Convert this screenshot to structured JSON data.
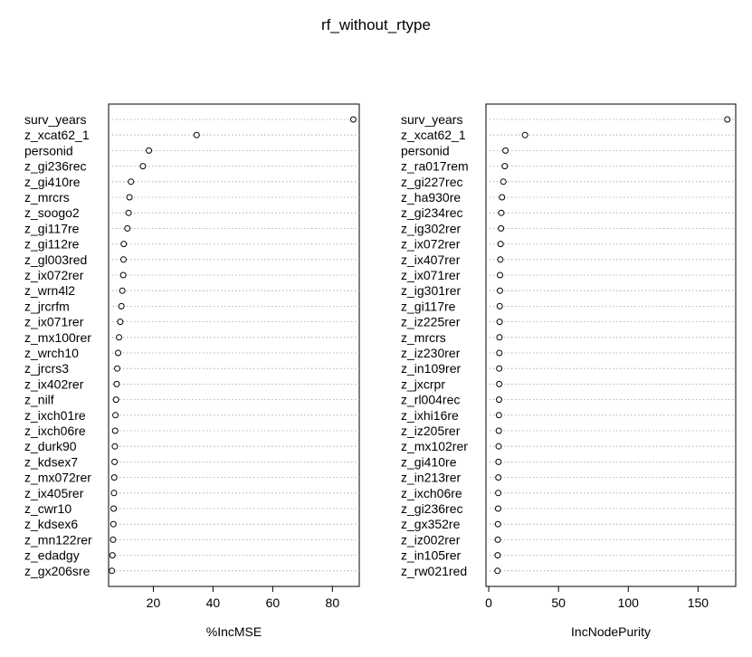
{
  "title": "rf_without_rtype",
  "chart_data": [
    {
      "type": "scatter",
      "xlabel": "%IncMSE",
      "ylabel": "",
      "xlim": [
        5,
        89
      ],
      "xticks": [
        20,
        40,
        60,
        80
      ],
      "grid": "dotted horizontal",
      "categories": [
        "surv_years",
        "z_xcat62_1",
        "personid",
        "z_gi236rec",
        "z_gi410re",
        "z_mrcrs",
        "z_soogo2",
        "z_gi117re",
        "z_gi112re",
        "z_gl003red",
        "z_ix072rer",
        "z_wrn4l2",
        "z_jrcrfm",
        "z_ix071rer",
        "z_mx100rer",
        "z_wrch10",
        "z_jrcrs3",
        "z_ix402rer",
        "z_nilf",
        "z_ixch01re",
        "z_ixch06re",
        "z_durk90",
        "z_kdsex7",
        "z_mx072rer",
        "z_ix405rer",
        "z_cwr10",
        "z_kdsex6",
        "z_mn122rer",
        "z_edadgy",
        "z_gx206sre"
      ],
      "values": [
        87,
        34.5,
        18.5,
        16.5,
        12.5,
        12,
        11.7,
        11.3,
        10.1,
        10,
        9.9,
        9.6,
        9.3,
        8.9,
        8.5,
        8.2,
        7.9,
        7.7,
        7.5,
        7.3,
        7.2,
        7.1,
        7.0,
        6.9,
        6.8,
        6.7,
        6.6,
        6.5,
        6.3,
        6.1
      ]
    },
    {
      "type": "scatter",
      "xlabel": "IncNodePurity",
      "ylabel": "",
      "xlim": [
        -2,
        177
      ],
      "xticks": [
        0,
        50,
        100,
        150
      ],
      "grid": "dotted horizontal",
      "categories": [
        "surv_years",
        "z_xcat62_1",
        "personid",
        "z_ra017rem",
        "z_gi227rec",
        "z_ha930re",
        "z_gi234rec",
        "z_ig302rer",
        "z_ix072rer",
        "z_ix407rer",
        "z_ix071rer",
        "z_ig301rer",
        "z_gi117re",
        "z_iz225rer",
        "z_mrcrs",
        "z_iz230rer",
        "z_in109rer",
        "z_jxcrpr",
        "z_rl004rec",
        "z_ixhi16re",
        "z_iz205rer",
        "z_mx102rer",
        "z_gi410re",
        "z_in213rer",
        "z_ixch06re",
        "z_gi236rec",
        "z_gx352re",
        "z_iz002rer",
        "z_in105rer",
        "z_rw021red"
      ],
      "values": [
        171,
        26,
        12,
        11.5,
        10.5,
        9.5,
        9,
        8.8,
        8.5,
        8.3,
        8.1,
        8,
        7.9,
        7.8,
        7.7,
        7.6,
        7.5,
        7.5,
        7.4,
        7.3,
        7.2,
        7.1,
        7.0,
        6.9,
        6.8,
        6.7,
        6.6,
        6.5,
        6.4,
        6.3
      ]
    }
  ]
}
